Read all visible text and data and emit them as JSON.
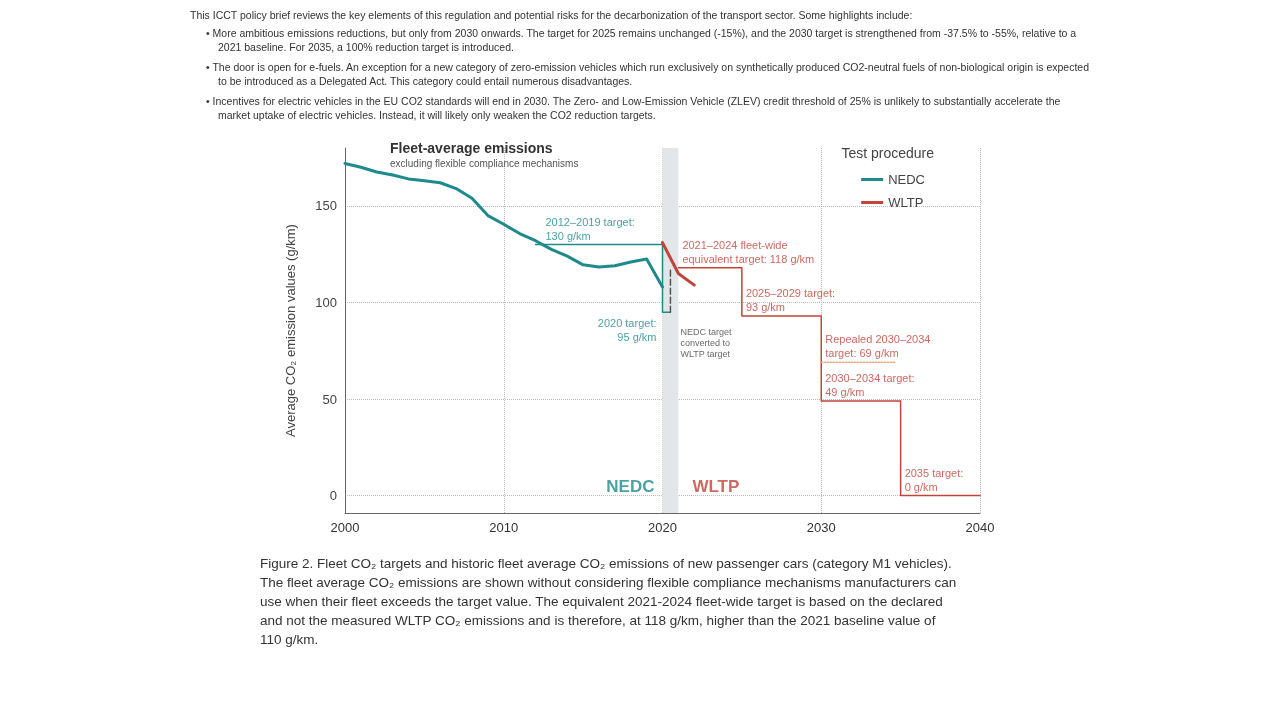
{
  "chart_data": {
    "type": "line",
    "title": "Fleet-average emissions",
    "subtitle": "excluding flexible compliance mechanisms",
    "ylabel": "Average CO₂ emission values (g/km)",
    "legend_title": "Test procedure",
    "legend": "top right",
    "grid": true,
    "xlim": [
      2000,
      2040
    ],
    "xticks": [
      2000,
      2010,
      2020,
      2030,
      2040
    ],
    "ylim": [
      -9,
      180
    ],
    "yticks": [
      0,
      50,
      100,
      150
    ],
    "bands": [
      {
        "axis": "x",
        "from": 2020,
        "to": 2021,
        "color": "#e3e6e8"
      }
    ],
    "series": [
      {
        "name": "NEDC",
        "color": "#1f8a8c",
        "x": [
          2000,
          2001,
          2002,
          2003,
          2004,
          2005,
          2006,
          2007,
          2008,
          2009,
          2010,
          2011,
          2012,
          2013,
          2014,
          2015,
          2016,
          2017,
          2018,
          2019,
          2020
        ],
        "values": [
          172,
          170,
          167.6,
          166,
          164,
          163,
          162,
          159,
          154,
          145,
          140.5,
          135.7,
          132,
          127.5,
          124,
          119.5,
          118.4,
          119,
          121,
          122.5,
          108
        ]
      },
      {
        "name": "WLTP",
        "color": "#c0443a",
        "x": [
          2020,
          2021,
          2022
        ],
        "values": [
          131,
          115,
          109
        ]
      },
      {
        "color": "#1f8a8c",
        "x": [
          2012,
          2020,
          2020,
          2020.5
        ],
        "values": [
          130,
          130,
          95,
          95
        ]
      },
      {
        "color": "#555555",
        "line_style": "dashed",
        "x": [
          2020.5,
          2020.5
        ],
        "values": [
          95,
          118
        ]
      },
      {
        "color": "#c0443a",
        "x": [
          2021,
          2025,
          2025,
          2030,
          2030,
          2035,
          2035,
          2040
        ],
        "values": [
          118,
          118,
          93,
          93,
          49,
          49,
          0,
          0
        ]
      },
      {
        "color": "#e8ab8c",
        "line_style": "dotted",
        "x": [
          2030,
          2034.7
        ],
        "values": [
          69,
          69
        ]
      }
    ],
    "annotations": [
      "This ICCT policy brief reviews the key elements of this regulation and potential risks for the decarbonization of the transport sector. Some highlights include:",
      "• More ambitious emissions reductions, but only from 2030 onwards. The target for 2025 remains unchanged (-15%), and the 2030 target is strengthened from -37.5% to -55%, relative to a 2021 baseline. For 2035, a 100% reduction target is introduced.",
      "• The door is open for e-fuels. An exception for a new category of zero-emission vehicles which run exclusively on synthetically produced CO2-neutral fuels of non-biological origin is expected to be introduced as a Delegated Act. This category could entail numerous disadvantages.",
      "• Incentives for electric vehicles in the EU CO2 standards will end in 2030. The Zero- and Low-Emission Vehicle (ZLEV) credit threshold of 25% is unlikely to substantially accelerate the market uptake of electric vehicles. Instead, it will likely only weaken the CO2 reduction targets.",
      {
        "text": "2012–2019 target:\n130 g/km",
        "x": 2012,
        "y": 130
      },
      {
        "text": "2020 target:\n95 g/km",
        "x": 2020,
        "y": 95
      },
      {
        "text": "NEDC target\nconverted to\nWLTP target",
        "x": 2020.5,
        "y": 95
      },
      {
        "text": "2021–2024 fleet-wide\nequivalent target: 118 g/km",
        "x": 2021,
        "y": 118
      },
      {
        "text": "2025–2029 target:\n93 g/km",
        "x": 2025,
        "y": 93
      },
      {
        "text": "Repealed 2030–2034\ntarget: 69 g/km",
        "x": 2030,
        "y": 69
      },
      {
        "text": "2030–2034 target:\n49 g/km",
        "x": 2030,
        "y": 49
      },
      {
        "text": "2035 target:\n0 g/km",
        "x": 2035,
        "y": 0
      },
      {
        "text": "NEDC",
        "x": 2020,
        "y": 0
      },
      {
        "text": "WLTP",
        "x": 2021,
        "y": 0
      },
      "Figure 2. Fleet CO₂ targets and historic fleet average CO₂ emissions of new passenger cars (category M1 vehicles). The fleet average CO₂ emissions are shown without considering flexible compliance mechanisms manufacturers can use when their fleet exceeds the target value. The equivalent 2021-2024 fleet-wide target is based on the declared and not the measured WLTP CO₂ emissions and is therefore, at 118 g/km, higher than the 2021 baseline value of 110 g/km."
    ]
  }
}
